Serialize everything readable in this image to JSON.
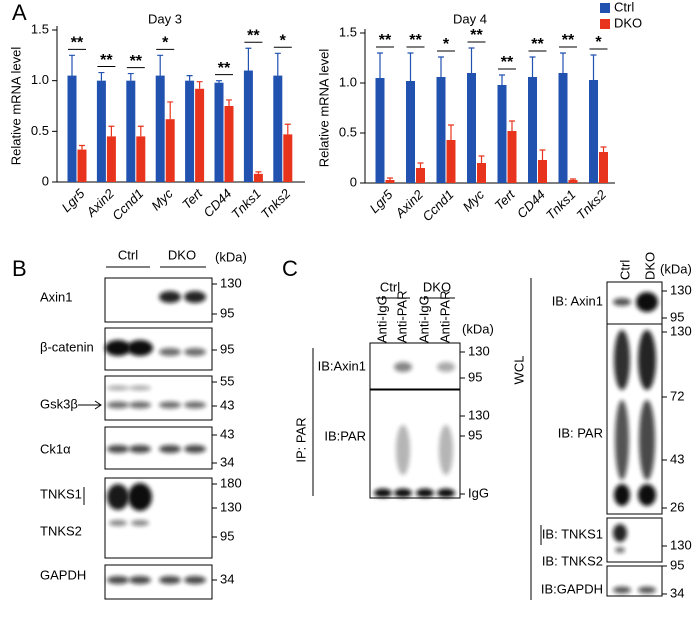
{
  "panels": {
    "a": "A",
    "b": "B",
    "c": "C"
  },
  "chart_data": [
    {
      "type": "bar",
      "title": "Day 3",
      "y_label": "Relative mRNA level",
      "categories": [
        "Lgr5",
        "Axin2",
        "Ccnd1",
        "Myc",
        "Tert",
        "CD44",
        "Tnks1",
        "Tnks2"
      ],
      "series": [
        {
          "name": "Ctrl",
          "color": "#2152b0",
          "values": [
            1.05,
            1.0,
            1.0,
            1.05,
            1.0,
            0.98,
            1.1,
            1.05
          ],
          "errors": [
            0.2,
            0.08,
            0.07,
            0.2,
            0.05,
            0.02,
            0.22,
            0.22
          ]
        },
        {
          "name": "DKO",
          "color": "#e8341c",
          "values": [
            0.32,
            0.45,
            0.45,
            0.62,
            0.92,
            0.75,
            0.08,
            0.47
          ],
          "errors": [
            0.04,
            0.1,
            0.1,
            0.17,
            0.07,
            0.06,
            0.02,
            0.1
          ]
        }
      ],
      "significance": [
        "**",
        "**",
        "**",
        "*",
        null,
        "**",
        "**",
        "*"
      ],
      "ylim": [
        0,
        1.5
      ],
      "yticks": [
        0,
        0.5,
        {
          "value": 1,
          "label": "1.0"
        },
        1.5
      ]
    },
    {
      "type": "bar",
      "title": "Day 4",
      "y_label": "Relative mRNA level",
      "categories": [
        "Lgr5",
        "Axin2",
        "Ccnd1",
        "Myc",
        "Tert",
        "CD44",
        "Tnks1",
        "Tnks2"
      ],
      "series": [
        {
          "name": "Ctrl",
          "color": "#2152b0",
          "values": [
            1.05,
            1.02,
            1.06,
            1.1,
            0.98,
            1.06,
            1.1,
            1.03
          ],
          "errors": [
            0.25,
            0.28,
            0.2,
            0.25,
            0.1,
            0.2,
            0.2,
            0.25
          ]
        },
        {
          "name": "DKO",
          "color": "#e8341c",
          "values": [
            0.03,
            0.15,
            0.43,
            0.2,
            0.52,
            0.23,
            0.03,
            0.31
          ],
          "errors": [
            0.02,
            0.05,
            0.15,
            0.07,
            0.1,
            0.1,
            0.01,
            0.05
          ]
        }
      ],
      "significance": [
        "**",
        "**",
        "*",
        "**",
        "**",
        "**",
        "**",
        "*"
      ],
      "ylim": [
        0,
        1.5
      ],
      "yticks": [
        0,
        0.5,
        {
          "value": 1,
          "label": "1.0"
        },
        1.5
      ],
      "legend": "upper right"
    }
  ],
  "panel_b": {
    "header": {
      "ctrl": "Ctrl",
      "dko": "DKO",
      "unit": "(kDa)"
    },
    "rows": [
      {
        "labels": [
          "Axin1"
        ],
        "markers": [
          130,
          95
        ]
      },
      {
        "labels": [
          "β-catenin"
        ],
        "markers": [
          95
        ]
      },
      {
        "labels": [
          "Gsk3β"
        ],
        "markers": [
          55,
          43
        ]
      },
      {
        "labels": [
          "Ck1α"
        ],
        "markers": [
          43,
          34
        ]
      },
      {
        "labels": [
          "TNKS1",
          "TNKS2"
        ],
        "markers": [
          180,
          130,
          95
        ]
      },
      {
        "labels": [
          "GAPDH"
        ],
        "markers": [
          34
        ]
      }
    ]
  },
  "panel_c_ip": {
    "groups": [
      "Ctrl",
      "DKO"
    ],
    "lanes": [
      "Anti-IgG",
      "Anti-PAR",
      "Anti-IgG",
      "Anti-PAR"
    ],
    "unit": "(kDa)",
    "side_label": "IP: PAR",
    "rows": [
      {
        "labels": [
          "IB:Axin1"
        ],
        "markers": [
          130,
          95
        ]
      },
      {
        "labels": [
          "IB:PAR"
        ],
        "markers": [
          130,
          95,
          "IgG"
        ]
      }
    ]
  },
  "panel_c_wcl": {
    "lanes": [
      "Ctrl",
      "DKO"
    ],
    "unit": "(kDa)",
    "side_label": "WCL",
    "rows": [
      {
        "labels": [
          "IB: Axin1"
        ],
        "markers": [
          130,
          95
        ]
      },
      {
        "labels": [
          "IB: PAR"
        ],
        "markers": [
          130,
          72,
          43,
          26
        ]
      },
      {
        "labels": [
          "IB: TNKS1",
          "IB: TNKS2"
        ],
        "markers": [
          130,
          95
        ]
      },
      {
        "labels": [
          "IB:GAPDH"
        ],
        "markers": [
          34
        ]
      }
    ]
  }
}
